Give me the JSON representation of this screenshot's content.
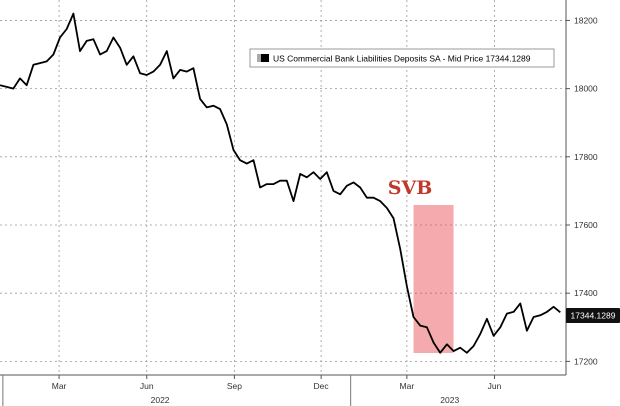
{
  "chart_data": {
    "type": "line",
    "legend": "US Commercial Bank Liabilities Deposits SA - Mid Price 17344.1289",
    "last_value_label": "17344.1289",
    "annotation": {
      "text": "SVB",
      "x_start": "2023-03-08",
      "x_end": "2023-04-19",
      "color": "#e8444a"
    },
    "yticks": [
      17200,
      17400,
      17600,
      17800,
      18000,
      18200
    ],
    "xtick_labels": [
      "Mar",
      "Jun",
      "Sep",
      "Dec",
      "Mar",
      "Jun"
    ],
    "xtick_dates": [
      "2022-03-01",
      "2022-06-01",
      "2022-09-01",
      "2022-12-01",
      "2023-03-01",
      "2023-06-01"
    ],
    "year_labels": [
      "2022",
      "2023"
    ],
    "ylim": [
      17160,
      18260
    ],
    "xlim": [
      "2021-12-29",
      "2023-08-15"
    ],
    "grid": true,
    "line_color": "#000000",
    "series": [
      {
        "x": [
          "2021-12-29",
          "2022-01-05",
          "2022-01-12",
          "2022-01-19",
          "2022-01-26",
          "2022-02-02",
          "2022-02-09",
          "2022-02-16",
          "2022-02-23",
          "2022-03-02",
          "2022-03-09",
          "2022-03-16",
          "2022-03-23",
          "2022-03-30",
          "2022-04-06",
          "2022-04-13",
          "2022-04-20",
          "2022-04-27",
          "2022-05-04",
          "2022-05-11",
          "2022-05-18",
          "2022-05-25",
          "2022-06-01",
          "2022-06-08",
          "2022-06-15",
          "2022-06-22",
          "2022-06-29",
          "2022-07-06",
          "2022-07-13",
          "2022-07-20",
          "2022-07-27",
          "2022-08-03",
          "2022-08-10",
          "2022-08-17",
          "2022-08-24",
          "2022-08-31",
          "2022-09-07",
          "2022-09-14",
          "2022-09-21",
          "2022-09-28",
          "2022-10-05",
          "2022-10-12",
          "2022-10-19",
          "2022-10-26",
          "2022-11-02",
          "2022-11-09",
          "2022-11-16",
          "2022-11-23",
          "2022-11-30",
          "2022-12-07",
          "2022-12-14",
          "2022-12-21",
          "2022-12-28",
          "2023-01-04",
          "2023-01-11",
          "2023-01-18",
          "2023-01-25",
          "2023-02-01",
          "2023-02-08",
          "2023-02-15",
          "2023-02-22",
          "2023-03-01",
          "2023-03-08",
          "2023-03-15",
          "2023-03-22",
          "2023-03-29",
          "2023-04-05",
          "2023-04-12",
          "2023-04-19",
          "2023-04-26",
          "2023-05-03",
          "2023-05-10",
          "2023-05-17",
          "2023-05-24",
          "2023-05-31",
          "2023-06-07",
          "2023-06-14",
          "2023-06-21",
          "2023-06-28",
          "2023-07-05",
          "2023-07-12",
          "2023-07-19",
          "2023-07-26",
          "2023-08-02",
          "2023-08-09"
        ],
        "y": [
          18010,
          18005,
          18000,
          18030,
          18010,
          18070,
          18075,
          18080,
          18100,
          18150,
          18175,
          18220,
          18110,
          18140,
          18145,
          18100,
          18110,
          18150,
          18120,
          18070,
          18095,
          18045,
          18040,
          18050,
          18070,
          18110,
          18030,
          18055,
          18050,
          18060,
          17970,
          17945,
          17950,
          17940,
          17895,
          17820,
          17790,
          17780,
          17790,
          17710,
          17720,
          17720,
          17730,
          17730,
          17670,
          17750,
          17740,
          17755,
          17735,
          17755,
          17700,
          17690,
          17715,
          17725,
          17710,
          17680,
          17680,
          17670,
          17650,
          17620,
          17530,
          17420,
          17330,
          17305,
          17300,
          17255,
          17225,
          17250,
          17230,
          17240,
          17225,
          17245,
          17280,
          17325,
          17275,
          17300,
          17340,
          17345,
          17370,
          17290,
          17330,
          17335,
          17345,
          17360,
          17344
        ]
      }
    ]
  }
}
